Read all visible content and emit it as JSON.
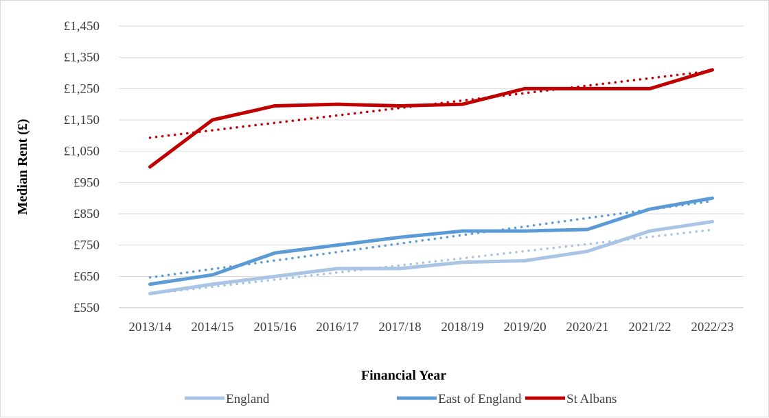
{
  "chart_data": {
    "type": "line",
    "xlabel": "Financial Year",
    "ylabel": "Median Rent (£)",
    "categories": [
      "2013/14",
      "2014/15",
      "2015/16",
      "2016/17",
      "2017/18",
      "2018/19",
      "2019/20",
      "2020/21",
      "2021/22",
      "2022/23"
    ],
    "y_ticks": [
      "£550",
      "£650",
      "£750",
      "£850",
      "£950",
      "£1,050",
      "£1,150",
      "£1,250",
      "£1,350",
      "£1,450"
    ],
    "ylim": [
      550,
      1450
    ],
    "y_step": 100,
    "grid": true,
    "legend_position": "bottom",
    "trendlines": "linear, dotted, one per series",
    "series": [
      {
        "name": "England",
        "color": "#a9c4e4",
        "values": [
          595,
          625,
          650,
          675,
          675,
          695,
          700,
          730,
          795,
          825
        ]
      },
      {
        "name": "East of England",
        "color": "#5b9bd5",
        "values": [
          625,
          655,
          725,
          750,
          775,
          795,
          795,
          800,
          865,
          900
        ]
      },
      {
        "name": "St Albans",
        "color": "#c00000",
        "values": [
          1000,
          1150,
          1195,
          1200,
          1195,
          1200,
          1250,
          1250,
          1250,
          1310
        ]
      }
    ]
  }
}
